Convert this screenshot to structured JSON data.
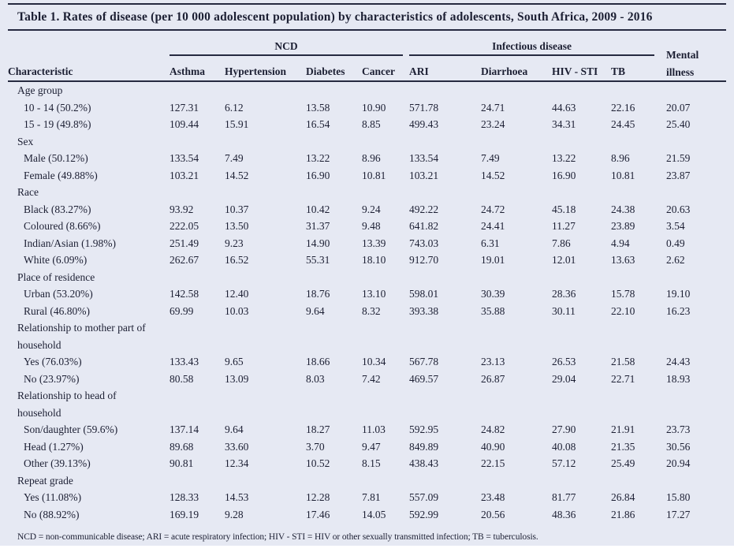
{
  "colors": {
    "page_background": "#e6e9f3",
    "ink": "#1c1f33",
    "rule": "#262a40"
  },
  "chart_data": {
    "type": "table",
    "title": "Table 1. Rates of disease (per 10 000 adolescent population) by characteristics of adolescents, South Africa, 2009 - 2016",
    "column_groups": [
      {
        "label": "NCD",
        "columns": [
          "Asthma",
          "Hypertension",
          "Diabetes",
          "Cancer"
        ]
      },
      {
        "label": "Infectious disease",
        "columns": [
          "ARI",
          "Diarrhoea",
          "HIV - STI",
          "TB"
        ]
      }
    ],
    "columns": [
      "Characteristic",
      "Asthma",
      "Hypertension",
      "Diabetes",
      "Cancer",
      "ARI",
      "Diarrhoea",
      "HIV - STI",
      "TB",
      "Mental illness"
    ],
    "sections": [
      {
        "label": "Age group",
        "rows": [
          {
            "characteristic": "10 - 14 (50.2%)",
            "values": [
              "127.31",
              "6.12",
              "13.58",
              "10.90",
              "571.78",
              "24.71",
              "44.63",
              "22.16",
              "20.07"
            ]
          },
          {
            "characteristic": "15 - 19 (49.8%)",
            "values": [
              "109.44",
              "15.91",
              "16.54",
              "8.85",
              "499.43",
              "23.24",
              "34.31",
              "24.45",
              "25.40"
            ]
          }
        ]
      },
      {
        "label": "Sex",
        "rows": [
          {
            "characteristic": "Male (50.12%)",
            "values": [
              "133.54",
              "7.49",
              "13.22",
              "8.96",
              "133.54",
              "7.49",
              "13.22",
              "8.96",
              "21.59"
            ]
          },
          {
            "characteristic": "Female (49.88%)",
            "values": [
              "103.21",
              "14.52",
              "16.90",
              "10.81",
              "103.21",
              "14.52",
              "16.90",
              "10.81",
              "23.87"
            ]
          }
        ]
      },
      {
        "label": "Race",
        "rows": [
          {
            "characteristic": "Black (83.27%)",
            "values": [
              "93.92",
              "10.37",
              "10.42",
              "9.24",
              "492.22",
              "24.72",
              "45.18",
              "24.38",
              "20.63"
            ]
          },
          {
            "characteristic": "Coloured (8.66%)",
            "values": [
              "222.05",
              "13.50",
              "31.37",
              "9.48",
              "641.82",
              "24.41",
              "11.27",
              "23.89",
              "3.54"
            ]
          },
          {
            "characteristic": "Indian/Asian (1.98%)",
            "values": [
              "251.49",
              "9.23",
              "14.90",
              "13.39",
              "743.03",
              "6.31",
              "7.86",
              "4.94",
              "0.49"
            ]
          },
          {
            "characteristic": "White (6.09%)",
            "values": [
              "262.67",
              "16.52",
              "55.31",
              "18.10",
              "912.70",
              "19.01",
              "12.01",
              "13.63",
              "2.62"
            ]
          }
        ]
      },
      {
        "label": "Place of residence",
        "rows": [
          {
            "characteristic": "Urban (53.20%)",
            "values": [
              "142.58",
              "12.40",
              "18.76",
              "13.10",
              "598.01",
              "30.39",
              "28.36",
              "15.78",
              "19.10"
            ]
          },
          {
            "characteristic": "Rural (46.80%)",
            "values": [
              "69.99",
              "10.03",
              "9.64",
              "8.32",
              "393.38",
              "35.88",
              "30.11",
              "22.10",
              "16.23"
            ]
          }
        ]
      },
      {
        "label": "Relationship to mother part of household",
        "rows": [
          {
            "characteristic": "Yes (76.03%)",
            "values": [
              "133.43",
              "9.65",
              "18.66",
              "10.34",
              "567.78",
              "23.13",
              "26.53",
              "21.58",
              "24.43"
            ]
          },
          {
            "characteristic": "No (23.97%)",
            "values": [
              "80.58",
              "13.09",
              "8.03",
              "7.42",
              "469.57",
              "26.87",
              "29.04",
              "22.71",
              "18.93"
            ]
          }
        ]
      },
      {
        "label": "Relationship to head of household",
        "rows": [
          {
            "characteristic": "Son/daughter (59.6%)",
            "values": [
              "137.14",
              "9.64",
              "18.27",
              "11.03",
              "592.95",
              "24.82",
              "27.90",
              "21.91",
              "23.73"
            ]
          },
          {
            "characteristic": "Head (1.27%)",
            "values": [
              "89.68",
              "33.60",
              "3.70",
              "9.47",
              "849.89",
              "40.90",
              "40.08",
              "21.35",
              "30.56"
            ]
          },
          {
            "characteristic": "Other (39.13%)",
            "values": [
              "90.81",
              "12.34",
              "10.52",
              "8.15",
              "438.43",
              "22.15",
              "57.12",
              "25.49",
              "20.94"
            ]
          }
        ]
      },
      {
        "label": "Repeat grade",
        "rows": [
          {
            "characteristic": "Yes (11.08%)",
            "values": [
              "128.33",
              "14.53",
              "12.28",
              "7.81",
              "557.09",
              "23.48",
              "81.77",
              "26.84",
              "15.80"
            ]
          },
          {
            "characteristic": "No (88.92%)",
            "values": [
              "169.19",
              "9.28",
              "17.46",
              "14.05",
              "592.99",
              "20.56",
              "48.36",
              "21.86",
              "17.27"
            ]
          }
        ]
      }
    ],
    "footnote": "NCD = non-communicable disease; ARI = acute respiratory infection; HIV - STI = HIV or other sexually transmitted infection; TB = tuberculosis."
  }
}
